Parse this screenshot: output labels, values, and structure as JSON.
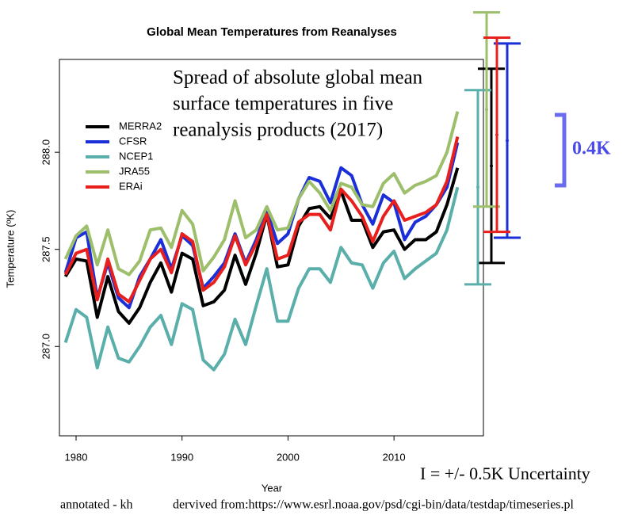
{
  "chart_data": {
    "type": "line",
    "title": "Global Mean Temperatures from Reanalyses",
    "xlabel": "Year",
    "ylabel": "Temperature (ºK)",
    "x": [
      1979,
      1980,
      1981,
      1982,
      1983,
      1984,
      1985,
      1986,
      1987,
      1988,
      1989,
      1990,
      1991,
      1992,
      1993,
      1994,
      1995,
      1996,
      1997,
      1998,
      1999,
      2000,
      2001,
      2002,
      2003,
      2004,
      2005,
      2006,
      2007,
      2008,
      2009,
      2010,
      2011,
      2012,
      2013,
      2014,
      2015,
      2016
    ],
    "xlim": [
      1978.43,
      2018.44
    ],
    "xticks": [
      1980,
      1990,
      2000,
      2010
    ],
    "ylim": [
      286.54,
      288.478
    ],
    "yticks": [
      {
        "value": 287,
        "label": "287.0"
      },
      287.5,
      {
        "value": 288,
        "label": "288.0"
      }
    ],
    "legend": "top-left",
    "series": [
      {
        "name": "MERRA2",
        "color": "#000000",
        "values": [
          287.36,
          287.45,
          287.44,
          287.15,
          287.36,
          287.18,
          287.12,
          287.2,
          287.33,
          287.43,
          287.28,
          287.48,
          287.45,
          287.21,
          287.23,
          287.29,
          287.47,
          287.32,
          287.48,
          287.68,
          287.41,
          287.42,
          287.62,
          287.71,
          287.72,
          287.66,
          287.8,
          287.65,
          287.65,
          287.51,
          287.59,
          287.6,
          287.5,
          287.55,
          287.55,
          287.59,
          287.73,
          287.92
        ],
        "uncertainty": {
          "value": 287.93,
          "error": 0.5
        }
      },
      {
        "name": "CFSR",
        "color": "#1a2fd8",
        "values": [
          287.38,
          287.56,
          287.59,
          287.25,
          287.43,
          287.25,
          287.2,
          287.36,
          287.45,
          287.55,
          287.4,
          287.57,
          287.52,
          287.3,
          287.36,
          287.43,
          287.58,
          287.43,
          287.55,
          287.7,
          287.53,
          287.58,
          287.76,
          287.87,
          287.85,
          287.74,
          287.92,
          287.88,
          287.73,
          287.63,
          287.78,
          287.74,
          287.55,
          287.64,
          287.67,
          287.73,
          287.82,
          288.05
        ],
        "uncertainty": {
          "value": 288.06,
          "error": 0.5
        }
      },
      {
        "name": "NCEP1",
        "color": "#5aafab",
        "values": [
          287.02,
          287.19,
          287.15,
          286.89,
          287.1,
          286.94,
          286.92,
          287.0,
          287.1,
          287.16,
          287.01,
          287.22,
          287.19,
          286.93,
          286.88,
          286.96,
          287.14,
          287.01,
          287.21,
          287.4,
          287.13,
          287.13,
          287.3,
          287.4,
          287.4,
          287.33,
          287.51,
          287.43,
          287.42,
          287.3,
          287.43,
          287.49,
          287.35,
          287.4,
          287.44,
          287.48,
          287.6,
          287.82
        ],
        "uncertainty": {
          "value": 287.82,
          "error": 0.5
        }
      },
      {
        "name": "JRA55",
        "color": "#9dbf6b",
        "values": [
          287.45,
          287.57,
          287.62,
          287.42,
          287.6,
          287.4,
          287.37,
          287.44,
          287.6,
          287.61,
          287.51,
          287.7,
          287.63,
          287.39,
          287.46,
          287.55,
          287.75,
          287.56,
          287.6,
          287.72,
          287.6,
          287.61,
          287.76,
          287.85,
          287.79,
          287.7,
          287.84,
          287.82,
          287.73,
          287.72,
          287.84,
          287.89,
          287.79,
          287.83,
          287.85,
          287.88,
          288.0,
          288.21
        ],
        "uncertainty": {
          "value": 288.22,
          "error": 0.5
        }
      },
      {
        "name": "ERAi",
        "color": "#e8201d",
        "values": [
          287.37,
          287.48,
          287.5,
          287.24,
          287.45,
          287.27,
          287.23,
          287.34,
          287.45,
          287.5,
          287.38,
          287.58,
          287.54,
          287.29,
          287.33,
          287.41,
          287.57,
          287.42,
          287.53,
          287.68,
          287.45,
          287.47,
          287.64,
          287.68,
          287.68,
          287.6,
          287.81,
          287.75,
          287.67,
          287.54,
          287.67,
          287.75,
          287.65,
          287.67,
          287.69,
          287.73,
          287.85,
          288.08
        ],
        "uncertainty": {
          "value": 288.09,
          "error": 0.5
        }
      }
    ],
    "annotation_lines": [
      "Spread of absolute global mean",
      "surface temperatures in five",
      "reanalysis products (2017)"
    ],
    "spread_label": "0.4K",
    "uncertainty_label": "I = +/- 0.5K Uncertainty",
    "footer_left": "annotated - kh",
    "footer_right": "dervived from:https://www.esrl.noaa.gov/psd/cgi-bin/data/testdap/timeseries.pl"
  }
}
